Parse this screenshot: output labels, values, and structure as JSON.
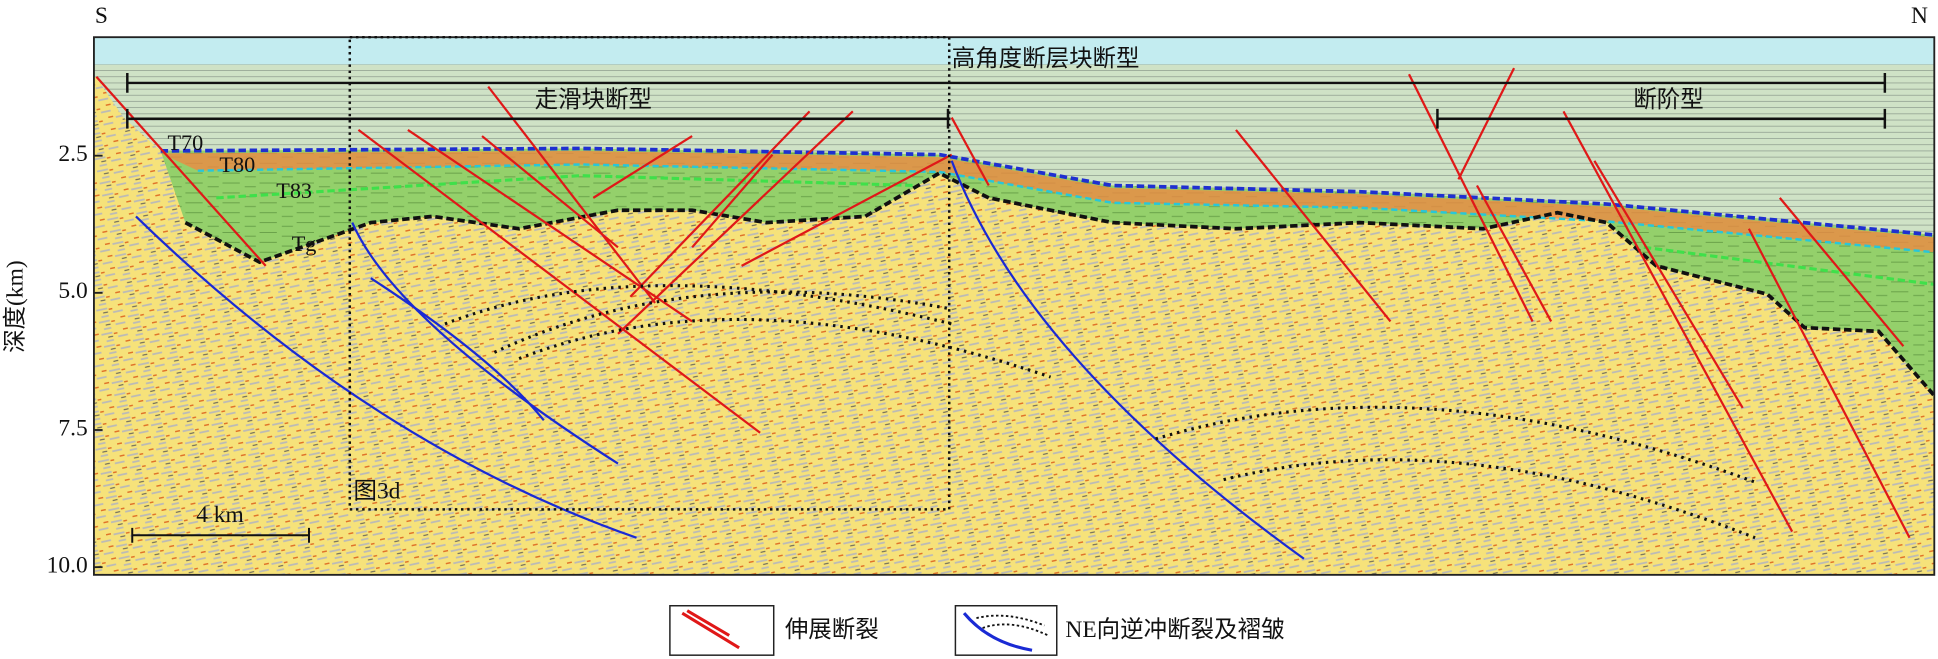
{
  "compass": {
    "left": "S",
    "right": "N"
  },
  "axis": {
    "label": "深度(km)",
    "ylim": [
      0.34,
      10.14
    ],
    "yticks": [
      2.5,
      {
        "value": 5.0,
        "label": "5.0"
      },
      7.5,
      {
        "value": 10.0,
        "label": "10.0"
      }
    ]
  },
  "zones": [
    "高角度断层块断型",
    "走滑块断型",
    "断阶型"
  ],
  "horizons": [
    "T70",
    "T80",
    "T83",
    "Tg"
  ],
  "inset_label": "图3d",
  "scale_bar": "4 km",
  "legend": [
    "伸展断裂",
    "NE向逆冲断裂及褶皱"
  ]
}
